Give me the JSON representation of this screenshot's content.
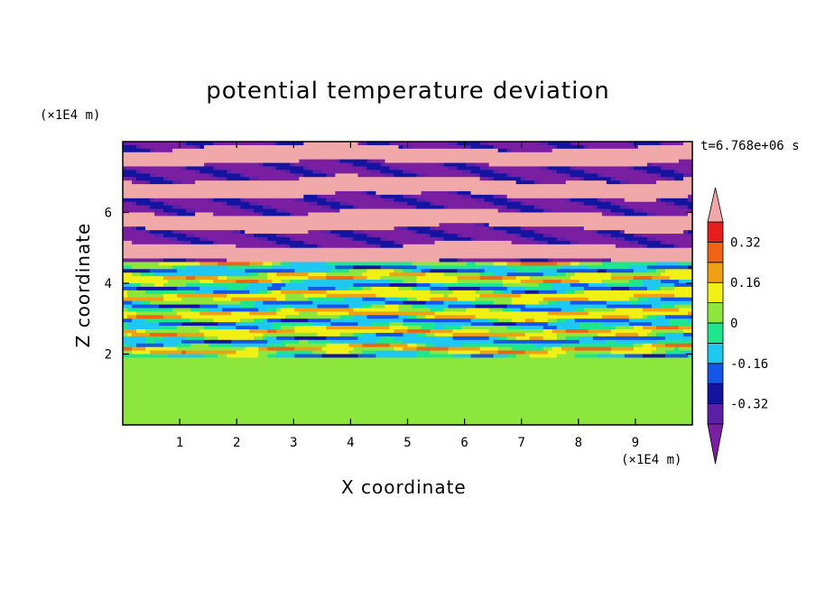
{
  "chart_data": {
    "type": "heatmap",
    "title": "potential temperature deviation",
    "xlabel": "X coordinate",
    "ylabel": "Z coordinate",
    "x_unit": "(×1E4 m)",
    "y_unit": "(×1E4 m)",
    "time_label": "t=6.768e+06 s",
    "xlim": [
      0,
      10
    ],
    "ylim": [
      0,
      8
    ],
    "x_ticks": [
      1,
      2,
      3,
      4,
      5,
      6,
      7,
      8,
      9
    ],
    "y_ticks": [
      2,
      4,
      6
    ],
    "colorbar": {
      "labels": [
        "0.32",
        "0.16",
        "0",
        "-0.16",
        "-0.32"
      ],
      "label_values": [
        0.32,
        0.16,
        0,
        -0.16,
        -0.32
      ],
      "levels": [
        -0.4,
        -0.32,
        -0.24,
        -0.16,
        -0.08,
        0,
        0.08,
        0.16,
        0.24,
        0.32,
        0.4
      ],
      "colors": [
        "#7a1fa2",
        "#5c1fa8",
        "#1414a0",
        "#1456e6",
        "#1ec8f0",
        "#1ee68c",
        "#8ce63c",
        "#f0f014",
        "#f0a014",
        "#f06414",
        "#e61e1e",
        "#f0a8a8"
      ],
      "extend": "both"
    },
    "description_bands": [
      {
        "z_range": [
          0,
          2
        ],
        "dominant_value": 0.02
      },
      {
        "z_range": [
          2,
          4.5
        ],
        "dominant_value": 0
      },
      {
        "z_range": [
          4.5,
          8
        ],
        "dominant_value": 0.4
      }
    ]
  }
}
